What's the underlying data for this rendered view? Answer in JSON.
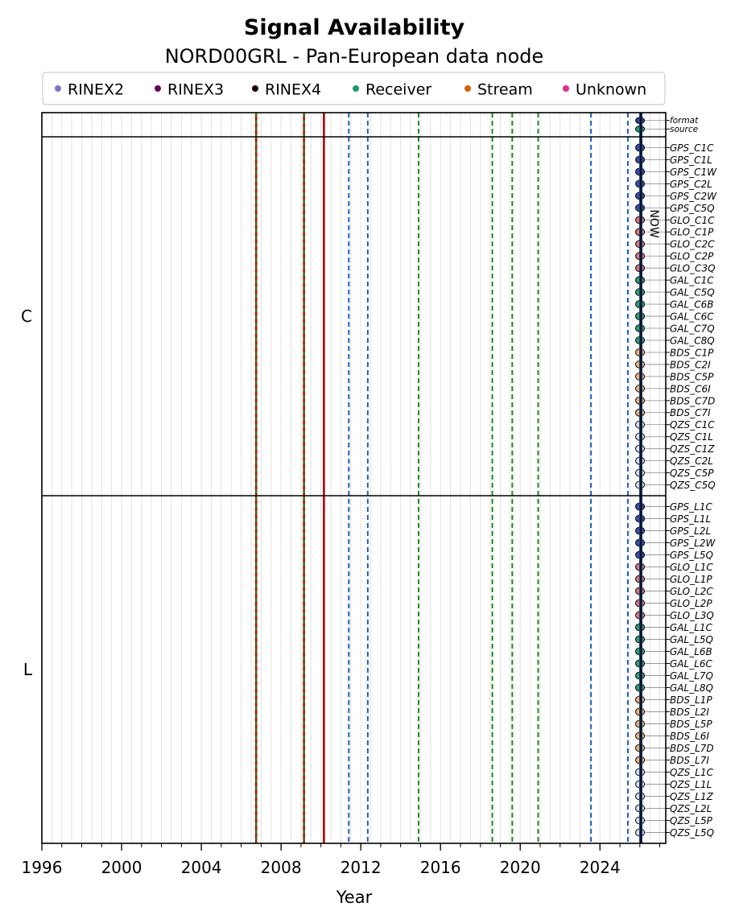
{
  "chart_data": {
    "type": "timeline",
    "title": "Signal Availability",
    "subtitle": "NORD00GRL - Pan-European data node",
    "xlabel": "Year",
    "x_ticks": [
      1996,
      2000,
      2004,
      2008,
      2012,
      2016,
      2020,
      2024
    ],
    "x_range": [
      1996,
      2027.3
    ],
    "now_label": "NOW",
    "now_value": 2026.05,
    "legend": [
      {
        "label": "RINEX2",
        "color": "#7777cc"
      },
      {
        "label": "RINEX3",
        "color": "#6a0060"
      },
      {
        "label": "RINEX4",
        "color": "#1a0010"
      },
      {
        "label": "Receiver",
        "color": "#1a9a70"
      },
      {
        "label": "Stream",
        "color": "#d95f02"
      },
      {
        "label": "Unknown",
        "color": "#e7298a"
      }
    ],
    "events": [
      {
        "date": 2006.75,
        "style": "red-green"
      },
      {
        "date": 2009.15,
        "style": "red-green"
      },
      {
        "date": 2010.15,
        "style": "red"
      },
      {
        "date": 2011.4,
        "style": "blue"
      },
      {
        "date": 2012.35,
        "style": "blue"
      },
      {
        "date": 2014.9,
        "style": "green"
      },
      {
        "date": 2018.6,
        "style": "green"
      },
      {
        "date": 2019.6,
        "style": "green"
      },
      {
        "date": 2020.9,
        "style": "green"
      },
      {
        "date": 2023.55,
        "style": "blue"
      },
      {
        "date": 2025.4,
        "style": "blue"
      }
    ],
    "panels": [
      {
        "label": "",
        "rows": [
          {
            "name": "format",
            "color": "#3a3f9a"
          },
          {
            "name": "source",
            "color": "#1a9a70"
          }
        ]
      },
      {
        "label": "C",
        "rows": [
          {
            "name": "GPS_C1C",
            "color": "#3a4db0"
          },
          {
            "name": "GPS_C1L",
            "color": "#3a4db0"
          },
          {
            "name": "GPS_C1W",
            "color": "#3a4db0"
          },
          {
            "name": "GPS_C2L",
            "color": "#3a4db0"
          },
          {
            "name": "GPS_C2W",
            "color": "#3a4db0"
          },
          {
            "name": "GPS_C5Q",
            "color": "#3a4db0"
          },
          {
            "name": "GLO_C1C",
            "color": "#e0707a"
          },
          {
            "name": "GLO_C1P",
            "color": "#e0707a"
          },
          {
            "name": "GLO_C2C",
            "color": "#e0707a"
          },
          {
            "name": "GLO_C2P",
            "color": "#e0707a"
          },
          {
            "name": "GLO_C3Q",
            "color": "#e0707a"
          },
          {
            "name": "GAL_C1C",
            "color": "#2aa070"
          },
          {
            "name": "GAL_C5Q",
            "color": "#2aa070"
          },
          {
            "name": "GAL_C6B",
            "color": "#2aa070"
          },
          {
            "name": "GAL_C6C",
            "color": "#2aa070"
          },
          {
            "name": "GAL_C7Q",
            "color": "#2aa070"
          },
          {
            "name": "GAL_C8Q",
            "color": "#2aa070"
          },
          {
            "name": "BDS_C1P",
            "color": "#f4b070"
          },
          {
            "name": "BDS_C2I",
            "color": "#f4b070"
          },
          {
            "name": "BDS_C5P",
            "color": "#f4b070"
          },
          {
            "name": "BDS_C6I",
            "color": "#f4b070"
          },
          {
            "name": "BDS_C7D",
            "color": "#f4b070"
          },
          {
            "name": "BDS_C7I",
            "color": "#f4b070"
          },
          {
            "name": "QZS_C1C",
            "color": "#d8dcf4"
          },
          {
            "name": "QZS_C1L",
            "color": "#d8dcf4"
          },
          {
            "name": "QZS_C1Z",
            "color": "#d8dcf4"
          },
          {
            "name": "QZS_C2L",
            "color": "#d8dcf4"
          },
          {
            "name": "QZS_C5P",
            "color": "#d8dcf4"
          },
          {
            "name": "QZS_C5Q",
            "color": "#d8dcf4"
          }
        ]
      },
      {
        "label": "L",
        "rows": [
          {
            "name": "GPS_L1C",
            "color": "#3a4db0"
          },
          {
            "name": "GPS_L1L",
            "color": "#3a4db0"
          },
          {
            "name": "GPS_L2L",
            "color": "#3a4db0"
          },
          {
            "name": "GPS_L2W",
            "color": "#3a4db0"
          },
          {
            "name": "GPS_L5Q",
            "color": "#3a4db0"
          },
          {
            "name": "GLO_L1C",
            "color": "#e0707a"
          },
          {
            "name": "GLO_L1P",
            "color": "#e0707a"
          },
          {
            "name": "GLO_L2C",
            "color": "#e0707a"
          },
          {
            "name": "GLO_L2P",
            "color": "#e0707a"
          },
          {
            "name": "GLO_L3Q",
            "color": "#e0707a"
          },
          {
            "name": "GAL_L1C",
            "color": "#2aa070"
          },
          {
            "name": "GAL_L5Q",
            "color": "#2aa070"
          },
          {
            "name": "GAL_L6B",
            "color": "#2aa070"
          },
          {
            "name": "GAL_L6C",
            "color": "#2aa070"
          },
          {
            "name": "GAL_L7Q",
            "color": "#2aa070"
          },
          {
            "name": "GAL_L8Q",
            "color": "#2aa070"
          },
          {
            "name": "BDS_L1P",
            "color": "#f4b070"
          },
          {
            "name": "BDS_L2I",
            "color": "#f4b070"
          },
          {
            "name": "BDS_L5P",
            "color": "#f4b070"
          },
          {
            "name": "BDS_L6I",
            "color": "#f4b070"
          },
          {
            "name": "BDS_L7D",
            "color": "#f4b070"
          },
          {
            "name": "BDS_L7I",
            "color": "#f4b070"
          },
          {
            "name": "QZS_L1C",
            "color": "#d8dcf4"
          },
          {
            "name": "QZS_L1L",
            "color": "#d8dcf4"
          },
          {
            "name": "QZS_L1Z",
            "color": "#d8dcf4"
          },
          {
            "name": "QZS_L2L",
            "color": "#d8dcf4"
          },
          {
            "name": "QZS_L5P",
            "color": "#d8dcf4"
          },
          {
            "name": "QZS_L5Q",
            "color": "#d8dcf4"
          }
        ]
      }
    ]
  }
}
